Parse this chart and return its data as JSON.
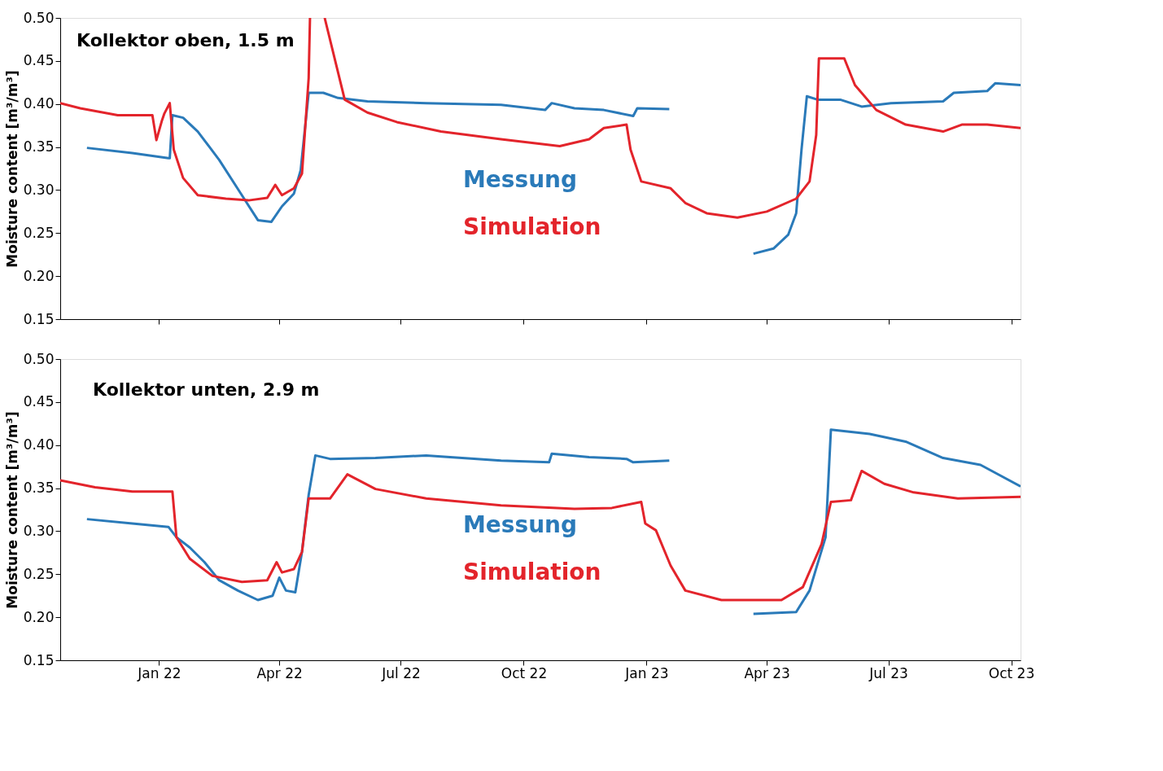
{
  "chart_data": [
    {
      "type": "line",
      "title": "Kollektor oben, 1.5 m",
      "ylabel": "Moisture content [m³/m³]",
      "xlim": [
        "2021-10-19",
        "2023-10-08"
      ],
      "xticks": [
        {
          "value": "2022-01-01",
          "label": null
        },
        {
          "value": "2022-04-01",
          "label": null
        },
        {
          "value": "2022-07-01",
          "label": null
        },
        {
          "value": "2022-10-01",
          "label": null
        },
        {
          "value": "2023-01-01",
          "label": null
        },
        {
          "value": "2023-04-01",
          "label": null
        },
        {
          "value": "2023-07-01",
          "label": null
        },
        {
          "value": "2023-10-01",
          "label": null
        }
      ],
      "ylim": [
        0.15,
        0.5
      ],
      "yticks": [
        0.15,
        {
          "value": 0.2,
          "label": "0.20"
        },
        0.25,
        {
          "value": 0.3,
          "label": "0.30"
        },
        0.35,
        {
          "value": 0.4,
          "label": "0.40"
        },
        0.45,
        {
          "value": 0.5,
          "label": "0.50"
        }
      ],
      "tick_labels": "y",
      "grid": false,
      "line_style": "solid",
      "marker": "none",
      "series": [
        {
          "name": "Messung",
          "color": "#2a7ab9",
          "x": [
            "2021-11-08",
            "2021-12-12",
            "2022-01-08",
            "2022-01-09",
            "2022-01-11",
            "2022-01-19",
            "2022-01-30",
            "2022-02-15",
            "2022-03-04",
            "2022-03-16",
            "2022-03-26",
            "2022-04-03",
            "2022-04-12",
            "2022-04-17",
            "2022-04-23",
            "2022-05-04",
            "2022-05-15",
            "2022-06-06",
            "2022-07-20",
            "2022-09-14",
            "2022-10-17",
            "2022-10-22",
            "2022-11-08",
            "2022-11-30",
            "2022-12-22",
            "2022-12-25",
            "2023-01-18",
            "2023-02-15",
            "2023-03-22",
            "2023-04-06",
            "2023-04-17",
            "2023-04-23",
            "2023-04-27",
            "2023-05-01",
            "2023-05-09",
            "2023-05-26",
            "2023-06-11",
            "2023-07-03",
            "2023-08-11",
            "2023-08-19",
            "2023-09-13",
            "2023-09-19",
            "2023-10-08"
          ],
          "values": [
            0.349,
            0.343,
            0.337,
            0.337,
            0.387,
            0.384,
            0.368,
            0.335,
            0.294,
            0.265,
            0.263,
            0.281,
            0.296,
            0.323,
            0.413,
            0.413,
            0.407,
            0.403,
            0.401,
            0.399,
            0.393,
            0.401,
            0.395,
            0.393,
            0.386,
            0.395,
            0.394,
            null,
            0.226,
            0.232,
            0.248,
            0.273,
            0.347,
            0.409,
            0.405,
            0.405,
            0.397,
            0.401,
            0.403,
            0.413,
            0.415,
            0.424,
            0.422
          ]
        },
        {
          "name": "Simulation",
          "color": "#e3242b",
          "x": [
            "2021-10-19",
            "2021-11-03",
            "2021-12-01",
            "2021-12-27",
            "2021-12-30",
            "2022-01-03",
            "2022-01-05",
            "2022-01-09",
            "2022-01-12",
            "2022-01-19",
            "2022-01-30",
            "2022-02-20",
            "2022-03-09",
            "2022-03-23",
            "2022-03-29",
            "2022-04-03",
            "2022-04-12",
            "2022-04-18",
            "2022-04-23",
            "2022-04-24",
            "2022-04-28",
            "2022-05-05",
            "2022-05-20",
            "2022-06-06",
            "2022-06-28",
            "2022-07-31",
            "2022-09-14",
            "2022-10-28",
            "2022-11-19",
            "2022-11-30",
            "2022-12-17",
            "2022-12-20",
            "2022-12-28",
            "2023-01-19",
            "2023-01-30",
            "2023-02-15",
            "2023-03-10",
            "2023-04-01",
            "2023-04-23",
            "2023-05-03",
            "2023-05-08",
            "2023-05-10",
            "2023-05-29",
            "2023-06-06",
            "2023-06-22",
            "2023-07-14",
            "2023-08-11",
            "2023-08-25",
            "2023-09-13",
            "2023-10-08"
          ],
          "values": [
            0.401,
            0.395,
            0.387,
            0.387,
            0.358,
            0.38,
            0.389,
            0.401,
            0.347,
            0.314,
            0.294,
            0.29,
            0.288,
            0.291,
            0.306,
            0.294,
            0.302,
            0.319,
            0.43,
            0.5,
            null,
            0.5,
            0.405,
            0.39,
            0.379,
            0.368,
            0.359,
            0.351,
            0.359,
            0.372,
            0.376,
            0.347,
            0.31,
            0.302,
            0.285,
            0.273,
            0.268,
            0.275,
            0.29,
            0.31,
            0.364,
            0.453,
            0.453,
            0.422,
            0.393,
            0.376,
            0.368,
            0.376,
            0.376,
            0.372
          ]
        }
      ]
    },
    {
      "type": "line",
      "title": "Kollektor unten, 2.9 m",
      "ylabel": "Moisture content [m³/m³]",
      "xlim": [
        "2021-10-19",
        "2023-10-08"
      ],
      "xticks": [
        {
          "value": "2022-01-01",
          "label": "Jan 22"
        },
        {
          "value": "2022-04-01",
          "label": "Apr 22"
        },
        {
          "value": "2022-07-01",
          "label": "Jul 22"
        },
        {
          "value": "2022-10-01",
          "label": "Oct 22"
        },
        {
          "value": "2023-01-01",
          "label": "Jan 23"
        },
        {
          "value": "2023-04-01",
          "label": "Apr 23"
        },
        {
          "value": "2023-07-01",
          "label": "Jul 23"
        },
        {
          "value": "2023-10-01",
          "label": "Oct 23"
        }
      ],
      "ylim": [
        0.15,
        0.5
      ],
      "yticks": [
        0.15,
        {
          "value": 0.2,
          "label": "0.20"
        },
        0.25,
        {
          "value": 0.3,
          "label": "0.30"
        },
        0.35,
        {
          "value": 0.4,
          "label": "0.40"
        },
        0.45,
        {
          "value": 0.5,
          "label": "0.50"
        }
      ],
      "grid": false,
      "line_style": "solid",
      "marker": "none",
      "series": [
        {
          "name": "Messung",
          "color": "#2a7ab9",
          "x": [
            "2021-11-08",
            "2021-12-12",
            "2022-01-08",
            "2022-01-14",
            "2022-01-24",
            "2022-02-04",
            "2022-02-15",
            "2022-03-01",
            "2022-03-16",
            "2022-03-27",
            "2022-04-01",
            "2022-04-06",
            "2022-04-13",
            "2022-04-18",
            "2022-04-23",
            "2022-04-28",
            "2022-05-09",
            "2022-06-12",
            "2022-07-20",
            "2022-09-14",
            "2022-10-20",
            "2022-10-22",
            "2022-11-19",
            "2022-12-17",
            "2022-12-22",
            "2023-01-18",
            "2023-02-15",
            "2023-03-22",
            "2023-04-23",
            "2023-05-03",
            "2023-05-15",
            "2023-05-19",
            "2023-06-17",
            "2023-07-14",
            "2023-08-11",
            "2023-09-08",
            "2023-10-08"
          ],
          "values": [
            0.314,
            0.309,
            0.305,
            0.293,
            0.281,
            0.264,
            0.243,
            0.231,
            0.22,
            0.225,
            0.246,
            0.231,
            0.229,
            0.276,
            0.342,
            0.388,
            0.384,
            0.385,
            0.388,
            0.382,
            0.38,
            0.39,
            0.386,
            0.384,
            0.38,
            0.382,
            null,
            0.204,
            0.206,
            0.231,
            0.293,
            0.418,
            0.413,
            0.404,
            0.385,
            0.377,
            0.352
          ]
        },
        {
          "name": "Simulation",
          "color": "#e3242b",
          "x": [
            "2021-10-19",
            "2021-11-14",
            "2021-12-12",
            "2022-01-11",
            "2022-01-14",
            "2022-01-24",
            "2022-02-10",
            "2022-03-04",
            "2022-03-23",
            "2022-03-30",
            "2022-04-03",
            "2022-04-12",
            "2022-04-18",
            "2022-04-23",
            "2022-05-09",
            "2022-05-22",
            "2022-06-12",
            "2022-07-20",
            "2022-09-14",
            "2022-11-08",
            "2022-12-06",
            "2022-12-28",
            "2022-12-31",
            "2023-01-08",
            "2023-01-19",
            "2023-01-30",
            "2023-02-26",
            "2023-03-21",
            "2023-04-12",
            "2023-04-28",
            "2023-05-12",
            "2023-05-19",
            "2023-06-03",
            "2023-06-11",
            "2023-06-28",
            "2023-07-20",
            "2023-08-22",
            "2023-10-08"
          ],
          "values": [
            0.359,
            0.351,
            0.346,
            0.346,
            0.293,
            0.268,
            0.248,
            0.241,
            0.243,
            0.264,
            0.252,
            0.256,
            0.276,
            0.338,
            0.338,
            0.366,
            0.349,
            0.338,
            0.33,
            0.326,
            0.327,
            0.334,
            0.309,
            0.301,
            0.26,
            0.231,
            0.22,
            0.22,
            0.22,
            0.235,
            0.285,
            0.334,
            0.336,
            0.37,
            0.355,
            0.345,
            0.338,
            0.34
          ]
        }
      ]
    }
  ]
}
